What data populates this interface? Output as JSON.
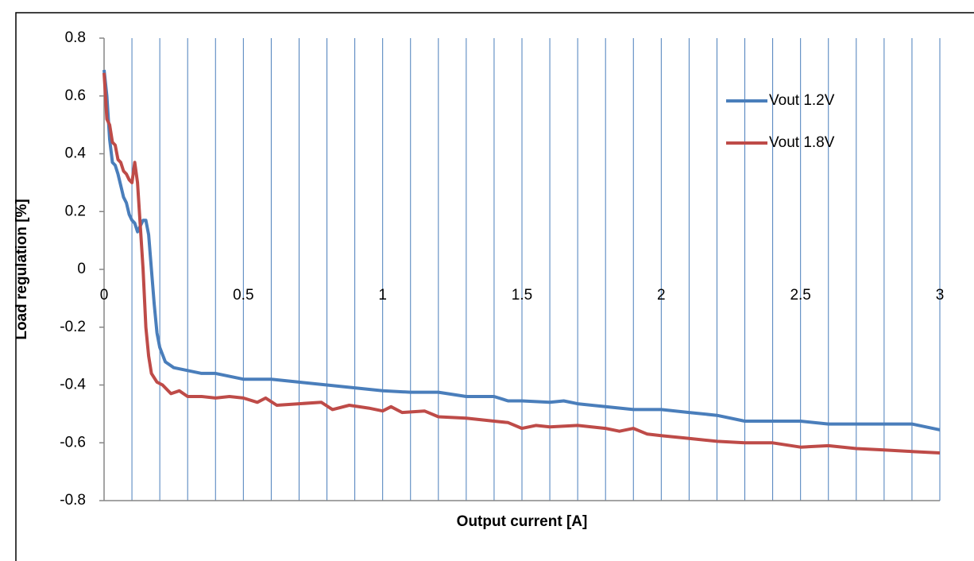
{
  "chart_data": {
    "type": "line",
    "x_label": "Output current [A]",
    "y_label": "Load regulation [%]",
    "xlim": [
      0,
      3
    ],
    "ylim": [
      -0.8,
      0.8
    ],
    "xticks": [
      0,
      0.5,
      1,
      1.5,
      2,
      2.5,
      3
    ],
    "xminorticks": [
      0.1,
      0.2,
      0.3,
      0.4,
      0.6,
      0.7,
      0.8,
      0.9,
      1.1,
      1.2,
      1.3,
      1.4,
      1.6,
      1.7,
      1.8,
      1.9,
      2.1,
      2.2,
      2.3,
      2.4,
      2.6,
      2.7,
      2.8,
      2.9
    ],
    "yticks": [
      -0.8,
      -0.6,
      -0.4,
      -0.2,
      0,
      0.2,
      0.4,
      0.6,
      0.8
    ],
    "grid": "x",
    "legend": "upper right",
    "series": [
      {
        "name": "Vout 1.2V",
        "color": "#4a7ebb",
        "x": [
          0,
          0.01,
          0.02,
          0.03,
          0.04,
          0.05,
          0.06,
          0.07,
          0.08,
          0.09,
          0.1,
          0.11,
          0.12,
          0.13,
          0.14,
          0.15,
          0.16,
          0.17,
          0.18,
          0.19,
          0.2,
          0.22,
          0.25,
          0.3,
          0.35,
          0.4,
          0.45,
          0.5,
          0.6,
          0.7,
          0.8,
          0.9,
          1.0,
          1.1,
          1.2,
          1.3,
          1.4,
          1.45,
          1.5,
          1.6,
          1.65,
          1.7,
          1.8,
          1.9,
          2.0,
          2.1,
          2.2,
          2.3,
          2.4,
          2.5,
          2.6,
          2.7,
          2.8,
          2.9,
          3.0
        ],
        "values": [
          0.69,
          0.6,
          0.45,
          0.37,
          0.36,
          0.33,
          0.29,
          0.25,
          0.23,
          0.19,
          0.17,
          0.16,
          0.13,
          0.15,
          0.17,
          0.17,
          0.12,
          0.0,
          -0.12,
          -0.22,
          -0.27,
          -0.32,
          -0.34,
          -0.35,
          -0.36,
          -0.36,
          -0.37,
          -0.38,
          -0.38,
          -0.39,
          -0.4,
          -0.41,
          -0.42,
          -0.425,
          -0.425,
          -0.44,
          -0.44,
          -0.455,
          -0.455,
          -0.46,
          -0.455,
          -0.465,
          -0.475,
          -0.485,
          -0.485,
          -0.495,
          -0.505,
          -0.525,
          -0.525,
          -0.525,
          -0.535,
          -0.535,
          -0.535,
          -0.535,
          -0.555
        ]
      },
      {
        "name": "Vout 1.8V",
        "color": "#be4b48",
        "x": [
          0,
          0.005,
          0.01,
          0.02,
          0.03,
          0.04,
          0.05,
          0.06,
          0.07,
          0.08,
          0.09,
          0.1,
          0.11,
          0.12,
          0.13,
          0.14,
          0.15,
          0.16,
          0.17,
          0.19,
          0.21,
          0.24,
          0.27,
          0.3,
          0.35,
          0.4,
          0.45,
          0.5,
          0.55,
          0.58,
          0.62,
          0.7,
          0.78,
          0.82,
          0.88,
          0.95,
          1.0,
          1.03,
          1.07,
          1.15,
          1.2,
          1.3,
          1.4,
          1.45,
          1.5,
          1.55,
          1.6,
          1.7,
          1.8,
          1.85,
          1.9,
          1.95,
          2.0,
          2.1,
          2.2,
          2.3,
          2.4,
          2.5,
          2.6,
          2.7,
          2.8,
          2.9,
          3.0
        ],
        "values": [
          0.68,
          0.6,
          0.52,
          0.5,
          0.44,
          0.43,
          0.38,
          0.37,
          0.34,
          0.33,
          0.31,
          0.3,
          0.37,
          0.3,
          0.15,
          0.0,
          -0.2,
          -0.3,
          -0.36,
          -0.39,
          -0.4,
          -0.43,
          -0.42,
          -0.44,
          -0.44,
          -0.445,
          -0.44,
          -0.445,
          -0.46,
          -0.445,
          -0.47,
          -0.465,
          -0.46,
          -0.485,
          -0.47,
          -0.48,
          -0.49,
          -0.475,
          -0.495,
          -0.49,
          -0.51,
          -0.515,
          -0.525,
          -0.53,
          -0.55,
          -0.54,
          -0.545,
          -0.54,
          -0.55,
          -0.56,
          -0.55,
          -0.57,
          -0.575,
          -0.585,
          -0.595,
          -0.6,
          -0.6,
          -0.615,
          -0.61,
          -0.62,
          -0.625,
          -0.63,
          -0.635
        ]
      }
    ]
  }
}
